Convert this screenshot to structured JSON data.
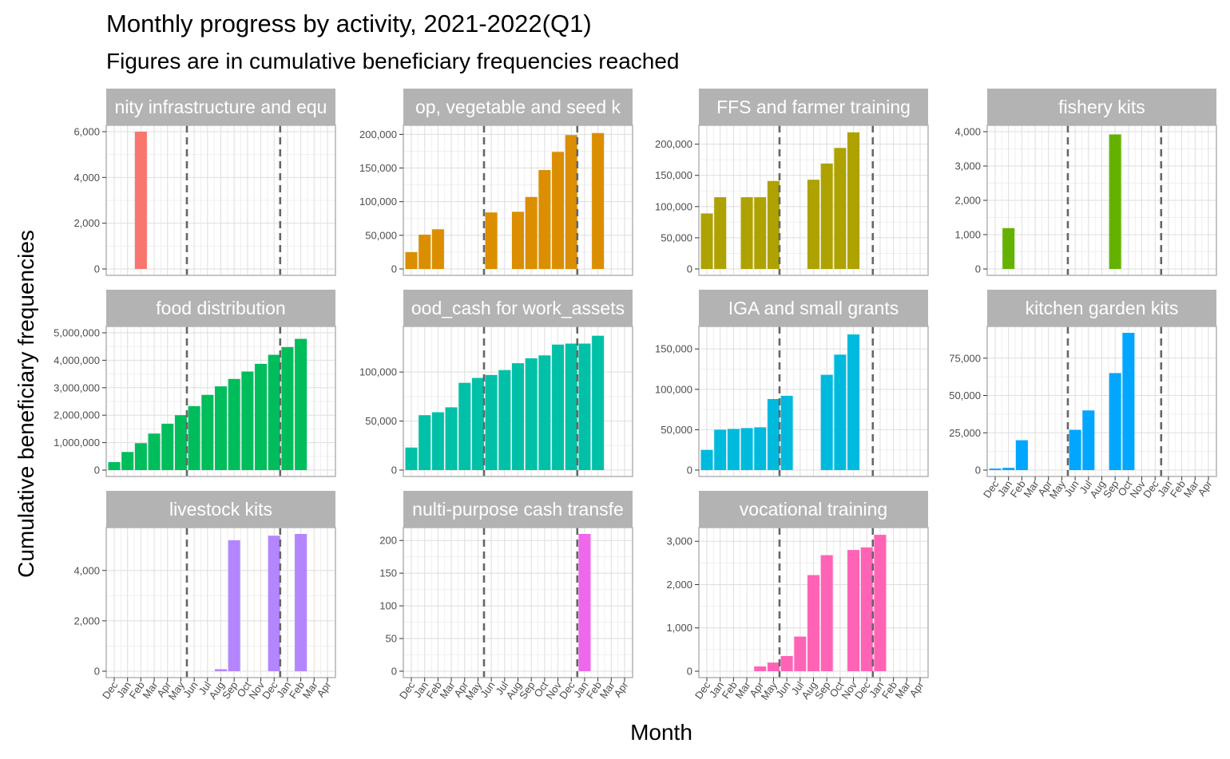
{
  "title": "Monthly progress by activity, 2021-2022(Q1)",
  "subtitle": "Figures are in cumulative beneficiary frequencies reached",
  "xlabel": "Month",
  "ylabel": "Cumulative beneficiary frequencies",
  "tick_labels": [
    "Dec",
    "Jan",
    "Feb",
    "Mar",
    "Apr",
    "May",
    "Jun",
    "Jul",
    "Aug",
    "Sep",
    "Oct",
    "Nov",
    "Dec",
    "Jan",
    "Feb",
    "Mar",
    "Apr"
  ],
  "months": [
    "2020-12",
    "2021-01",
    "2021-02",
    "2021-03",
    "2021-04",
    "2021-05",
    "2021-06",
    "2021-07",
    "2021-08",
    "2021-09",
    "2021-10",
    "2021-11",
    "2021-12",
    "2022-01",
    "2022-02",
    "2022-03",
    "2022-04"
  ],
  "vlines": [
    "2021-05-15",
    "2021-12-15"
  ],
  "chart_data": [
    {
      "type": "bar",
      "facet": "community infrastructure and equipment",
      "strip_label": "nity infrastructure and equ",
      "color": "#F8766D",
      "ylim": [
        0,
        6000
      ],
      "yticks": [
        0,
        2000,
        4000,
        6000
      ],
      "ytick_labels": [
        "0",
        "2,000",
        "4,000",
        "6,000"
      ],
      "data": [
        {
          "x": "2021-02",
          "y": 6000
        }
      ]
    },
    {
      "type": "bar",
      "facet": "crop, vegetable and seed kits",
      "strip_label": "op, vegetable and seed k",
      "color": "#DB8E00",
      "ylim": [
        0,
        204000
      ],
      "yticks": [
        0,
        50000,
        100000,
        150000,
        200000
      ],
      "ytick_labels": [
        "0",
        "50,000",
        "100,000",
        "150,000",
        "200,000"
      ],
      "data": [
        {
          "x": "2020-12",
          "y": 25000
        },
        {
          "x": "2021-01",
          "y": 51000
        },
        {
          "x": "2021-02",
          "y": 59000
        },
        {
          "x": "2021-06",
          "y": 84000
        },
        {
          "x": "2021-08",
          "y": 85000
        },
        {
          "x": "2021-09",
          "y": 107000
        },
        {
          "x": "2021-10",
          "y": 147000
        },
        {
          "x": "2021-11",
          "y": 174000
        },
        {
          "x": "2021-12",
          "y": 199000
        },
        {
          "x": "2022-02",
          "y": 202000
        }
      ]
    },
    {
      "type": "bar",
      "facet": "FFS and farmer training",
      "strip_label": "FFS and farmer training",
      "color": "#AEA200",
      "ylim": [
        0,
        220000
      ],
      "yticks": [
        0,
        50000,
        100000,
        150000,
        200000
      ],
      "ytick_labels": [
        "0",
        "50,000",
        "100,000",
        "150,000",
        "200,000"
      ],
      "data": [
        {
          "x": "2020-12",
          "y": 89000
        },
        {
          "x": "2021-01",
          "y": 115000
        },
        {
          "x": "2021-03",
          "y": 115000
        },
        {
          "x": "2021-04",
          "y": 115000
        },
        {
          "x": "2021-05",
          "y": 141000
        },
        {
          "x": "2021-08",
          "y": 143000
        },
        {
          "x": "2021-09",
          "y": 169000
        },
        {
          "x": "2021-10",
          "y": 194000
        },
        {
          "x": "2021-11",
          "y": 219000
        }
      ]
    },
    {
      "type": "bar",
      "facet": "fishery kits",
      "strip_label": "fishery kits",
      "color": "#64B200",
      "ylim": [
        0,
        4000
      ],
      "yticks": [
        0,
        1000,
        2000,
        3000,
        4000
      ],
      "ytick_labels": [
        "0",
        "1,000",
        "2,000",
        "3,000",
        "4,000"
      ],
      "data": [
        {
          "x": "2021-01",
          "y": 1190
        },
        {
          "x": "2021-09",
          "y": 3920
        }
      ]
    },
    {
      "type": "bar",
      "facet": "food distribution",
      "strip_label": "food distribution",
      "color": "#00BD5C",
      "ylim": [
        0,
        5000000
      ],
      "yticks": [
        0,
        1000000,
        2000000,
        3000000,
        4000000,
        5000000
      ],
      "ytick_labels": [
        "0",
        "1,000,000",
        "2,000,000",
        "3,000,000",
        "4,000,000",
        "5,000,000"
      ],
      "data": [
        {
          "x": "2020-12",
          "y": 290000
        },
        {
          "x": "2021-01",
          "y": 660000
        },
        {
          "x": "2021-02",
          "y": 980000
        },
        {
          "x": "2021-03",
          "y": 1330000
        },
        {
          "x": "2021-04",
          "y": 1690000
        },
        {
          "x": "2021-05",
          "y": 2000000
        },
        {
          "x": "2021-06",
          "y": 2330000
        },
        {
          "x": "2021-07",
          "y": 2740000
        },
        {
          "x": "2021-08",
          "y": 3050000
        },
        {
          "x": "2021-09",
          "y": 3320000
        },
        {
          "x": "2021-10",
          "y": 3590000
        },
        {
          "x": "2021-11",
          "y": 3870000
        },
        {
          "x": "2021-12",
          "y": 4200000
        },
        {
          "x": "2022-01",
          "y": 4480000
        },
        {
          "x": "2022-02",
          "y": 4780000
        }
      ]
    },
    {
      "type": "bar",
      "facet": "food_cash for work_assets",
      "strip_label": "ood_cash for work_assets",
      "color": "#00C1A7",
      "ylim": [
        0,
        140000
      ],
      "yticks": [
        0,
        50000,
        100000
      ],
      "ytick_labels": [
        "0",
        "50,000",
        "100,000"
      ],
      "data": [
        {
          "x": "2020-12",
          "y": 23000
        },
        {
          "x": "2021-01",
          "y": 56000
        },
        {
          "x": "2021-02",
          "y": 59000
        },
        {
          "x": "2021-03",
          "y": 64000
        },
        {
          "x": "2021-04",
          "y": 89000
        },
        {
          "x": "2021-05",
          "y": 94000
        },
        {
          "x": "2021-06",
          "y": 97000
        },
        {
          "x": "2021-07",
          "y": 102000
        },
        {
          "x": "2021-08",
          "y": 109000
        },
        {
          "x": "2021-09",
          "y": 114000
        },
        {
          "x": "2021-10",
          "y": 117000
        },
        {
          "x": "2021-11",
          "y": 128000
        },
        {
          "x": "2021-12",
          "y": 129000
        },
        {
          "x": "2022-01",
          "y": 129000
        },
        {
          "x": "2022-02",
          "y": 137000
        }
      ]
    },
    {
      "type": "bar",
      "facet": "IGA and small grants",
      "strip_label": "IGA and small grants",
      "color": "#00BADE",
      "ylim": [
        0,
        170000
      ],
      "yticks": [
        0,
        50000,
        100000,
        150000
      ],
      "ytick_labels": [
        "0",
        "50,000",
        "100,000",
        "150,000"
      ],
      "data": [
        {
          "x": "2020-12",
          "y": 25000
        },
        {
          "x": "2021-01",
          "y": 50000
        },
        {
          "x": "2021-02",
          "y": 51000
        },
        {
          "x": "2021-03",
          "y": 52000
        },
        {
          "x": "2021-04",
          "y": 53000
        },
        {
          "x": "2021-05",
          "y": 88000
        },
        {
          "x": "2021-06",
          "y": 92000
        },
        {
          "x": "2021-09",
          "y": 118000
        },
        {
          "x": "2021-10",
          "y": 143000
        },
        {
          "x": "2021-11",
          "y": 168000
        }
      ]
    },
    {
      "type": "bar",
      "facet": "kitchen garden kits",
      "strip_label": "kitchen garden kits",
      "color": "#00A6FF",
      "ylim": [
        0,
        92000
      ],
      "yticks": [
        0,
        25000,
        50000,
        75000
      ],
      "ytick_labels": [
        "0",
        "25,000",
        "50,000",
        "75,000"
      ],
      "data": [
        {
          "x": "2020-12",
          "y": 1000
        },
        {
          "x": "2021-01",
          "y": 1500
        },
        {
          "x": "2021-02",
          "y": 20000
        },
        {
          "x": "2021-06",
          "y": 27000
        },
        {
          "x": "2021-07",
          "y": 40000
        },
        {
          "x": "2021-09",
          "y": 65000
        },
        {
          "x": "2021-10",
          "y": 92000
        }
      ]
    },
    {
      "type": "bar",
      "facet": "livestock kits",
      "strip_label": "livestock kits",
      "color": "#B385FF",
      "ylim": [
        0,
        5450
      ],
      "yticks": [
        0,
        2000,
        4000
      ],
      "ytick_labels": [
        "0",
        "2,000",
        "4,000"
      ],
      "data": [
        {
          "x": "2021-08",
          "y": 80
        },
        {
          "x": "2021-09",
          "y": 5200
        },
        {
          "x": "2021-12",
          "y": 5380
        },
        {
          "x": "2022-02",
          "y": 5450
        }
      ]
    },
    {
      "type": "bar",
      "facet": "multi-purpose cash transfer",
      "strip_label": "nulti-purpose cash transfe",
      "color": "#EF67EB",
      "ylim": [
        0,
        210
      ],
      "yticks": [
        0,
        50,
        100,
        150,
        200
      ],
      "ytick_labels": [
        "0",
        "50",
        "100",
        "150",
        "200"
      ],
      "data": [
        {
          "x": "2022-01",
          "y": 210
        }
      ]
    },
    {
      "type": "bar",
      "facet": "vocational training",
      "strip_label": "vocational training",
      "color": "#FF63B6",
      "ylim": [
        0,
        3170
      ],
      "yticks": [
        0,
        1000,
        2000,
        3000
      ],
      "ytick_labels": [
        "0",
        "1,000",
        "2,000",
        "3,000"
      ],
      "data": [
        {
          "x": "2021-04",
          "y": 110
        },
        {
          "x": "2021-05",
          "y": 200
        },
        {
          "x": "2021-06",
          "y": 350
        },
        {
          "x": "2021-07",
          "y": 800
        },
        {
          "x": "2021-08",
          "y": 2220
        },
        {
          "x": "2021-09",
          "y": 2680
        },
        {
          "x": "2021-11",
          "y": 2800
        },
        {
          "x": "2021-12",
          "y": 2860
        },
        {
          "x": "2022-01",
          "y": 3150
        }
      ]
    }
  ]
}
